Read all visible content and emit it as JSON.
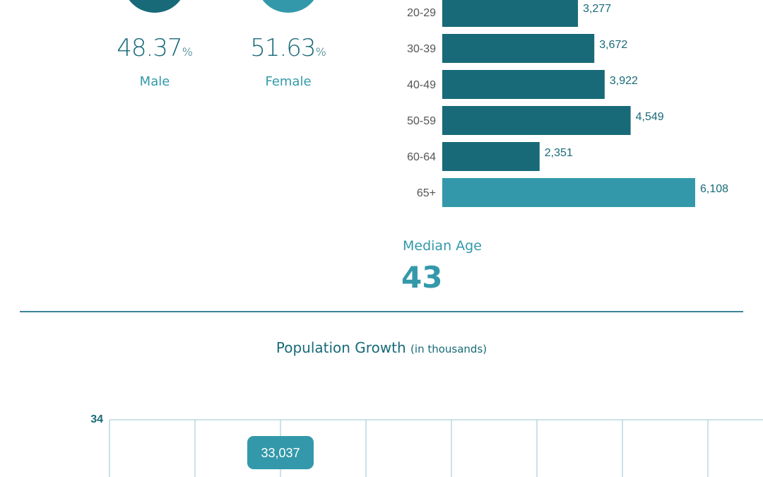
{
  "gender": {
    "male": {
      "value": "48.37",
      "unit": "%",
      "label": "Male",
      "color": "#186a78"
    },
    "female": {
      "value": "51.63",
      "unit": "%",
      "label": "Female",
      "color": "#3399aa"
    }
  },
  "median_age": {
    "label": "Median Age",
    "value": "43"
  },
  "growth": {
    "title": "Population Growth",
    "subtitle": "(in thousands)"
  },
  "chart_data": [
    {
      "type": "bar",
      "orientation": "horizontal",
      "categories": [
        "20-29",
        "30-39",
        "40-49",
        "50-59",
        "60-64",
        "65+"
      ],
      "values": [
        3277,
        3672,
        3922,
        4549,
        2351,
        6108
      ],
      "value_labels": [
        "3,277",
        "3,672",
        "3,922",
        "4,549",
        "2,351",
        "6,108"
      ],
      "colors": [
        "#186a78",
        "#186a78",
        "#186a78",
        "#186a78",
        "#186a78",
        "#3399aa"
      ],
      "grid": false
    },
    {
      "type": "line",
      "title": "Population Growth",
      "subtitle": "(in thousands)",
      "y_tick_labels": [
        "34"
      ],
      "points": [
        {
          "x_index": 2,
          "value": 33037,
          "label": "33,037"
        }
      ],
      "grid": true,
      "grid_color": "#b8d8e0",
      "label_color": "#3399aa"
    }
  ]
}
